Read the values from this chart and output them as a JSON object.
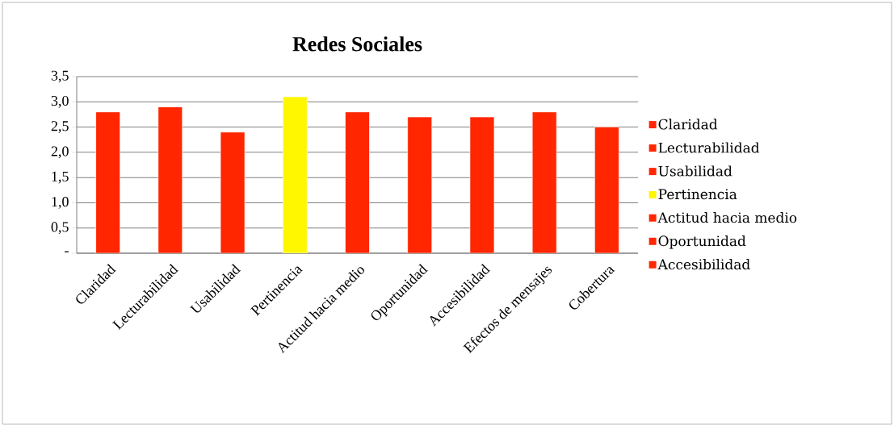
{
  "chart_data": {
    "type": "bar",
    "title": "Redes Sociales",
    "categories": [
      "Claridad",
      "Lecturabilidad",
      "Usabilidad",
      "Pertinencia",
      "Actitud hacia medio",
      "Oportunidad",
      "Accesibilidad",
      "Efectos de mensajes",
      "Cobertura"
    ],
    "series": [
      {
        "name": "Claridad",
        "color": "#ff2600",
        "values": [
          2.8,
          null,
          null,
          null,
          null,
          null,
          null,
          null,
          null
        ]
      },
      {
        "name": "Lecturabilidad",
        "color": "#ff2600",
        "values": [
          null,
          2.9,
          null,
          null,
          null,
          null,
          null,
          null,
          null
        ]
      },
      {
        "name": "Usabilidad",
        "color": "#ff2600",
        "values": [
          null,
          null,
          2.4,
          null,
          null,
          null,
          null,
          null,
          null
        ]
      },
      {
        "name": "Pertinencia",
        "color": "#fff700",
        "values": [
          null,
          null,
          null,
          3.1,
          null,
          null,
          null,
          null,
          null
        ]
      },
      {
        "name": "Actitud hacia medio",
        "color": "#ff2600",
        "values": [
          null,
          null,
          null,
          null,
          2.8,
          null,
          null,
          null,
          null
        ]
      },
      {
        "name": "Oportunidad",
        "color": "#ff2600",
        "values": [
          null,
          null,
          null,
          null,
          null,
          2.7,
          null,
          null,
          null
        ]
      },
      {
        "name": "Accesibilidad",
        "color": "#ff2600",
        "values": [
          null,
          null,
          null,
          null,
          null,
          null,
          2.7,
          null,
          null
        ]
      },
      {
        "color": "#ff2600",
        "values": [
          null,
          null,
          null,
          null,
          null,
          null,
          null,
          2.8,
          null
        ]
      },
      {
        "color": "#ff2600",
        "values": [
          null,
          null,
          null,
          null,
          null,
          null,
          null,
          null,
          2.5
        ]
      }
    ],
    "ylim": [
      0,
      3.5
    ],
    "yticks": [
      {
        "value": 0,
        "label": "-"
      },
      {
        "value": 0.5,
        "label": "0,5"
      },
      {
        "value": 1.0,
        "label": "1,0"
      },
      {
        "value": 1.5,
        "label": "1,5"
      },
      {
        "value": 2.0,
        "label": "2,0"
      },
      {
        "value": 2.5,
        "label": "2,5"
      },
      {
        "value": 3.0,
        "label": "3,0"
      },
      {
        "value": 3.5,
        "label": "3,5"
      }
    ],
    "grid": "y",
    "legend": "right"
  }
}
